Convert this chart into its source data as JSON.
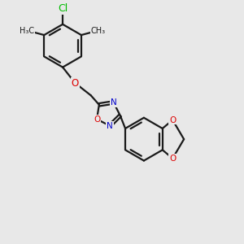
{
  "background_color": "#e8e8e8",
  "bond_color": "#1a1a1a",
  "bond_width": 1.6,
  "dbo": 0.06,
  "atom_colors": {
    "Cl": "#00bb00",
    "O": "#dd0000",
    "N": "#0000cc",
    "C": "#1a1a1a"
  },
  "afs": 8.5
}
